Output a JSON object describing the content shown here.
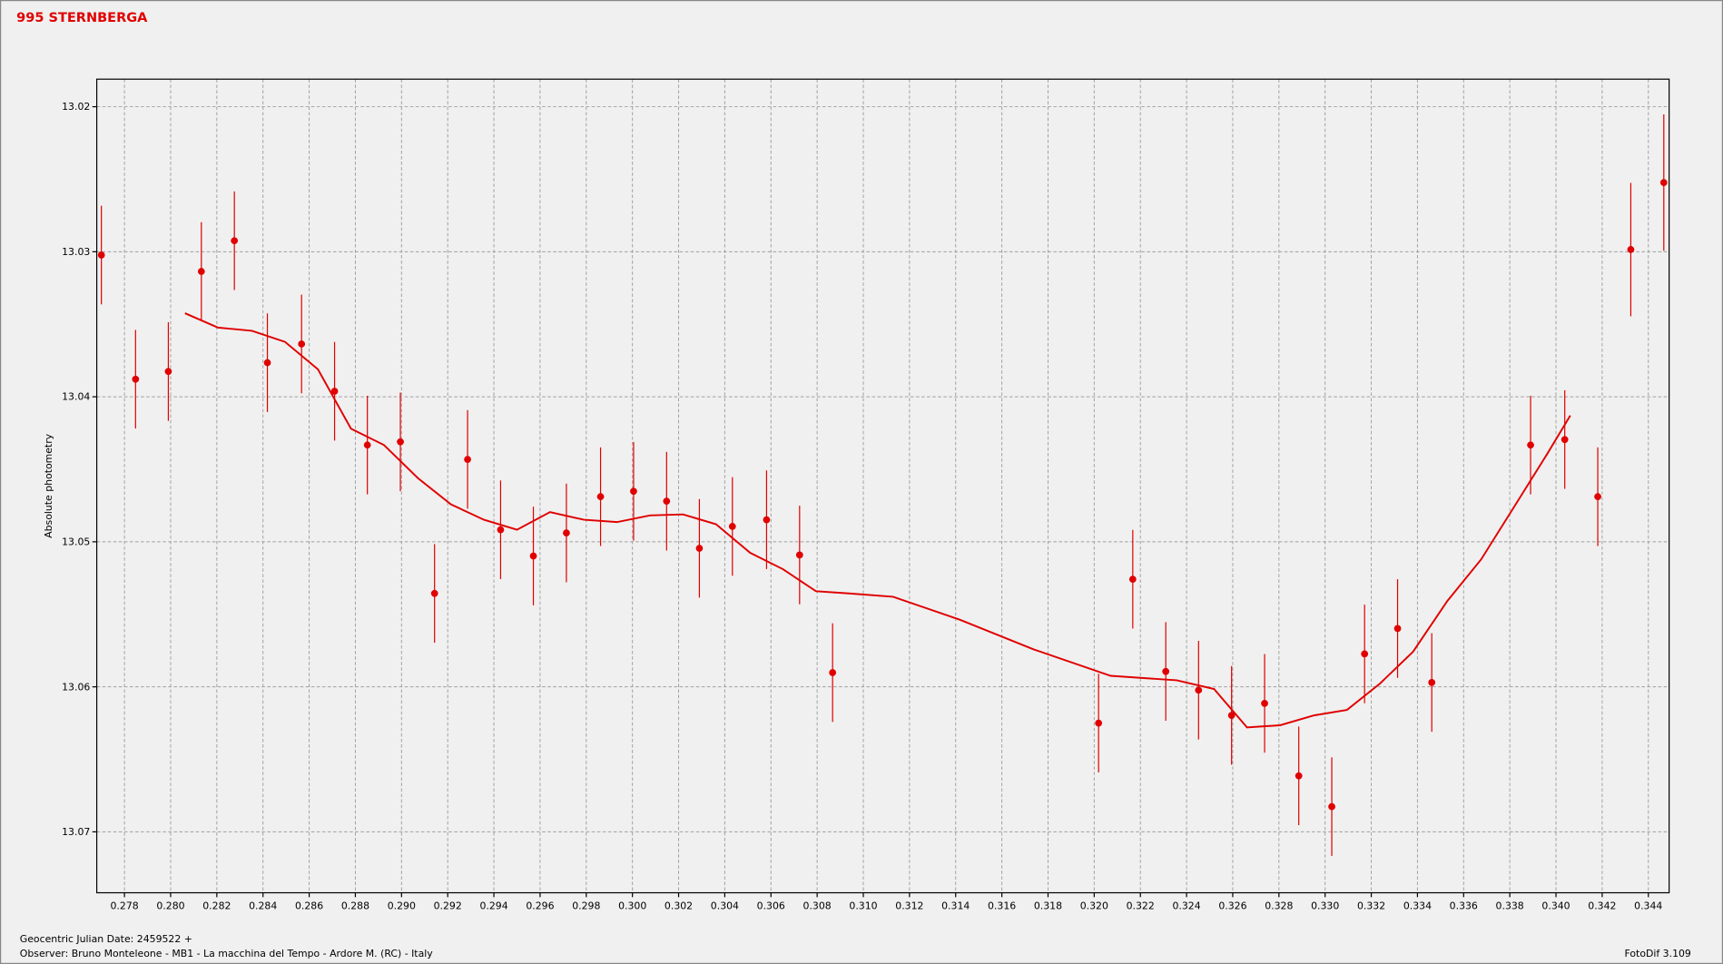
{
  "chart_data": {
    "type": "scatter",
    "title": "995 STERNBERGA",
    "y_label": "Absolute photometry",
    "footer": [
      "Geocentric Julian Date: 2459522 +",
      "Observer: Bruno Monteleone - MB1 - La macchina del Tempo - Ardore M. (RC) - Italy"
    ],
    "software": "FotoDif 3.109",
    "xlim": [
      0.2768,
      0.3449
    ],
    "ylim": [
      13.0742,
      13.0181
    ],
    "grid": true,
    "xticks": [
      0.278,
      {
        "value": 0.28,
        "label": "0.280"
      },
      0.282,
      0.284,
      0.286,
      0.288,
      {
        "value": 0.29,
        "label": "0.290"
      },
      0.292,
      0.294,
      0.296,
      0.298,
      {
        "value": 0.3,
        "label": "0.300"
      },
      0.302,
      0.304,
      0.306,
      0.308,
      {
        "value": 0.31,
        "label": "0.310"
      },
      0.312,
      0.314,
      0.316,
      0.318,
      {
        "value": 0.32,
        "label": "0.320"
      },
      0.322,
      0.324,
      0.326,
      0.328,
      {
        "value": 0.33,
        "label": "0.330"
      },
      0.332,
      0.334,
      0.336,
      0.338,
      {
        "value": 0.34,
        "label": "0.340"
      },
      0.342,
      0.344
    ],
    "yticks": [
      13.02,
      13.03,
      13.04,
      13.05,
      13.06,
      13.07
    ],
    "series": [
      {
        "type": "errorbar",
        "color": "#e00000",
        "x": [
          0.277,
          0.27848,
          0.2799,
          0.28133,
          0.28276,
          0.28419,
          0.28567,
          0.2871,
          0.28852,
          0.28995,
          0.29143,
          0.29286,
          0.29429,
          0.29571,
          0.29714,
          0.29862,
          0.30005,
          0.30148,
          0.3029,
          0.30433,
          0.30581,
          0.30724,
          0.30867,
          0.32019,
          0.32167,
          0.3231,
          0.32452,
          0.32595,
          0.32738,
          0.32886,
          0.33029,
          0.33171,
          0.33314,
          0.33462,
          0.3389,
          0.34038,
          0.34181,
          0.34324,
          0.34467
        ],
        "values": [
          13.03023,
          13.03879,
          13.03826,
          13.03136,
          13.02924,
          13.03765,
          13.03636,
          13.03962,
          13.04333,
          13.04311,
          13.05356,
          13.04432,
          13.04917,
          13.05098,
          13.04939,
          13.04689,
          13.04652,
          13.0472,
          13.05045,
          13.04894,
          13.04848,
          13.05091,
          13.05902,
          13.0625,
          13.05258,
          13.05894,
          13.06023,
          13.06197,
          13.06114,
          13.06614,
          13.06826,
          13.05773,
          13.05598,
          13.0597,
          13.04333,
          13.04295,
          13.04689,
          13.02985,
          13.02523
        ],
        "errors": [
          0.0034,
          0.0034,
          0.0034,
          0.0034,
          0.0034,
          0.0034,
          0.0034,
          0.0034,
          0.0034,
          0.0034,
          0.0034,
          0.0034,
          0.0034,
          0.0034,
          0.0034,
          0.0034,
          0.0034,
          0.0034,
          0.0034,
          0.0034,
          0.0034,
          0.0034,
          0.0034,
          0.0034,
          0.0034,
          0.0034,
          0.0034,
          0.0034,
          0.0034,
          0.0034,
          0.0034,
          0.0034,
          0.0034,
          0.0034,
          0.0034,
          0.0034,
          0.0034,
          0.0046,
          0.0047
        ]
      },
      {
        "type": "line",
        "color": "#e00000",
        "x": [
          0.28062,
          0.28205,
          0.28352,
          0.28495,
          0.28638,
          0.28781,
          0.28924,
          0.29071,
          0.29214,
          0.29357,
          0.295,
          0.29643,
          0.2979,
          0.29933,
          0.30076,
          0.30219,
          0.30362,
          0.3051,
          0.30652,
          0.30795,
          0.30938,
          0.31129,
          0.31419,
          0.31738,
          0.32071,
          0.32357,
          0.32519,
          0.32662,
          0.32805,
          0.32952,
          0.33095,
          0.33238,
          0.33381,
          0.33529,
          0.33676,
          0.33819,
          0.33962,
          0.34062
        ],
        "values": [
          13.03424,
          13.03523,
          13.03545,
          13.03621,
          13.03811,
          13.0422,
          13.04333,
          13.04561,
          13.04742,
          13.04848,
          13.04917,
          13.04795,
          13.04848,
          13.04864,
          13.04818,
          13.04811,
          13.04879,
          13.05076,
          13.05189,
          13.05341,
          13.05356,
          13.05379,
          13.05538,
          13.05742,
          13.05924,
          13.05955,
          13.06015,
          13.0628,
          13.06265,
          13.06197,
          13.06159,
          13.05977,
          13.05758,
          13.05409,
          13.05121,
          13.04758,
          13.04394,
          13.04129
        ]
      }
    ]
  }
}
